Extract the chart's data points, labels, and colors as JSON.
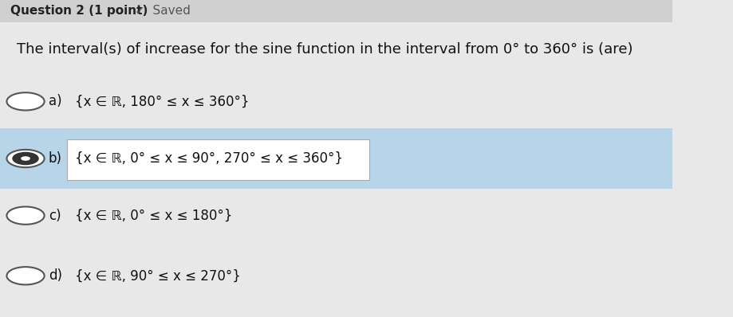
{
  "header_text": "Question 2 (1 point)  ✓  Saved",
  "question_text": "The interval(s) of increase for the sine function in the interval from 0° to 360° is (are)",
  "options": [
    {
      "label": "a)",
      "text": "{x ∈ ℝ, 180° ≤ x ≤ 360°}",
      "selected": false,
      "highlighted": false
    },
    {
      "label": "b)",
      "text": "{x ∈ ℝ, 0° ≤ x ≤ 90°, 270° ≤ x ≤ 360°}",
      "selected": true,
      "highlighted": true
    },
    {
      "label": "c)",
      "text": "{x ∈ ℝ, 0° ≤ x ≤ 180°}",
      "selected": false,
      "highlighted": false
    },
    {
      "label": "d)",
      "text": "{x ∈ ℝ, 90° ≤ x ≤ 270°}",
      "selected": false,
      "highlighted": false
    }
  ],
  "bg_color": "#e8e8e8",
  "highlight_color": "#b8d4e8",
  "header_bg": "#d0d0d0",
  "font_size_question": 13,
  "font_size_option": 12,
  "font_size_header": 11,
  "radio_outer_color": "#555555",
  "radio_inner_color": "#333333",
  "text_box_bg": "#ffffff",
  "text_box_border": "#aaaaaa"
}
